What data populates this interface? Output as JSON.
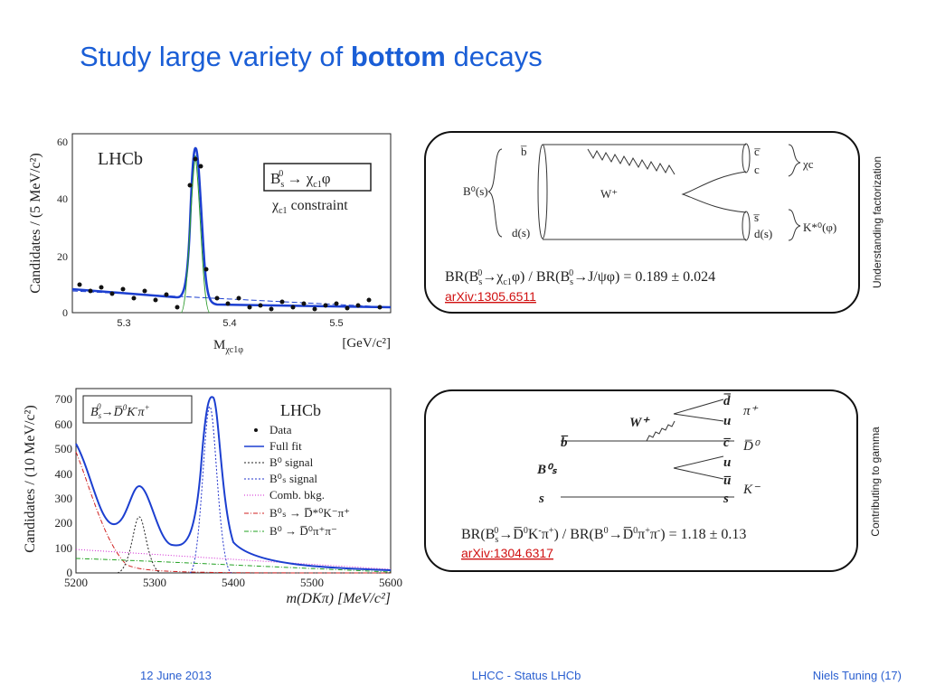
{
  "title": {
    "lead": "Study large variety of ",
    "key": "bottom",
    "tail": " decays"
  },
  "plot1": {
    "logo": "LHCb",
    "ylabel": "Candidates / (5 MeV/c²)",
    "yticks": [
      0,
      20,
      40,
      60
    ],
    "xticks": [
      "5.3",
      "5.4",
      "5.5"
    ],
    "xlabel": [
      "M",
      "χc1φ"
    ],
    "xunit": "[GeV/c²]",
    "legend": [
      "B",
      "s",
      "0",
      " → χ",
      "c1",
      "φ"
    ],
    "constraint": [
      "χ",
      "c1",
      " constraint"
    ]
  },
  "plot2": {
    "logo": "LHCb",
    "ylabel": "Candidates / (10 MeV/c²)",
    "yticks": [
      0,
      100,
      200,
      300,
      400,
      500,
      600,
      700
    ],
    "xticks": [
      5200,
      5300,
      5400,
      5500,
      5600
    ],
    "xlabel": "m(DKπ) [MeV/c²]",
    "box": [
      "B",
      "s",
      "0",
      "→D̅",
      "0",
      "K",
      "-",
      "π",
      "+"
    ],
    "legend": [
      "Data",
      "Full fit",
      "B⁰ signal",
      "B⁰ₛ signal",
      "Comb. bkg.",
      "B⁰ₛ → D̅*⁰K⁻π⁺",
      "B⁰ → D̅⁰π⁺π⁻"
    ]
  },
  "diagram1": {
    "labels": [
      "b̅",
      "c̅",
      "c",
      "χc",
      "W⁺",
      "B⁰(s)",
      "d(s)",
      "s̅",
      "d(s)",
      "K*⁰(φ)"
    ],
    "br": [
      "BR(B",
      "s",
      "0",
      "→χ",
      "c1",
      "φ) / BR(B",
      "s",
      "0",
      "→J/ψφ)  = 0.189 ± 0.024"
    ],
    "link": "arXiv:1305.6511",
    "side": "Understanding factorization"
  },
  "diagram2": {
    "labels": [
      "d̅",
      "π⁺",
      "W⁺",
      "u",
      "b̅",
      "c̅",
      "D̅⁰",
      "B⁰ₛ",
      "u",
      "u̅",
      "K⁻",
      "s",
      "s"
    ],
    "br": [
      "BR(B",
      "s",
      "0",
      "→D̅",
      "0",
      "K",
      "-",
      "π",
      "+",
      ") / BR(B",
      "0",
      "→D̅",
      "0",
      "π",
      "+",
      "π",
      "-",
      ")  = 1.18 ± 0.13"
    ],
    "link": "arXiv:1304.6317",
    "side": "Contributing to gamma"
  },
  "footer": {
    "date": "12 June 2013",
    "center": "LHCC - Status LHCb",
    "right": "Niels Tuning (17)"
  }
}
